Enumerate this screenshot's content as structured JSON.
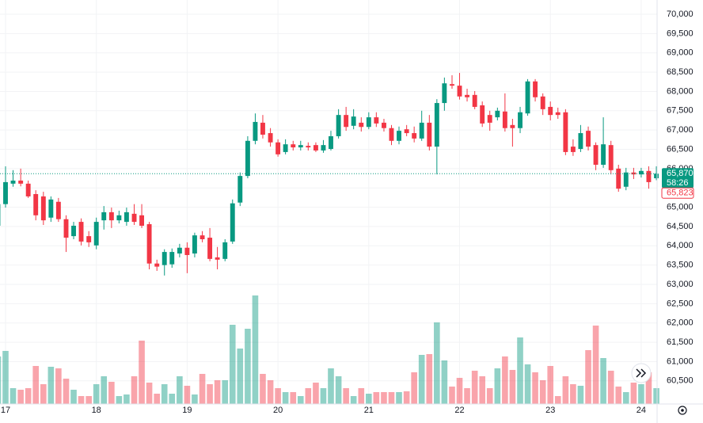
{
  "chart_data": {
    "type": "candlestick",
    "x": [
      16.917,
      17,
      17.083,
      17.167,
      17.25,
      17.333,
      17.417,
      17.5,
      17.583,
      17.667,
      17.75,
      17.833,
      17.917,
      18,
      18.083,
      18.167,
      18.25,
      18.333,
      18.417,
      18.5,
      18.583,
      18.667,
      18.75,
      18.833,
      18.917,
      19,
      19.083,
      19.167,
      19.25,
      19.333,
      19.417,
      19.5,
      19.583,
      19.667,
      19.75,
      19.833,
      19.917,
      20,
      20.083,
      20.167,
      20.25,
      20.333,
      20.417,
      20.5,
      20.583,
      20.667,
      20.75,
      20.833,
      20.917,
      21,
      21.083,
      21.167,
      21.25,
      21.333,
      21.417,
      21.5,
      21.583,
      21.667,
      21.75,
      21.833,
      21.917,
      22,
      22.083,
      22.167,
      22.25,
      22.333,
      22.417,
      22.5,
      22.583,
      22.667,
      22.75,
      22.833,
      22.917,
      23,
      23.083,
      23.167,
      23.25,
      23.333,
      23.417,
      23.5,
      23.583,
      23.667,
      23.75,
      23.833,
      23.917,
      24,
      24.083,
      24.167
    ],
    "open": [
      64520,
      65080,
      65610,
      65690,
      65610,
      65340,
      65280,
      64730,
      65140,
      64690,
      64250,
      64620,
      64250,
      64010,
      64660,
      64870,
      64660,
      64620,
      64830,
      64790,
      64560,
      63540,
      63500,
      63520,
      63800,
      63950,
      63800,
      64270,
      64210,
      63700,
      63660,
      64110,
      65120,
      65810,
      66720,
      67190,
      66920,
      66680,
      66430,
      66630,
      66550,
      66590,
      66610,
      66470,
      66510,
      66840,
      67390,
      67110,
      67190,
      67080,
      67330,
      67190,
      67050,
      66720,
      67020,
      66920,
      66780,
      67190,
      66570,
      67700,
      68190,
      68150,
      67910,
      67910,
      67640,
      67390,
      67330,
      67480,
      67130,
      67050,
      67430,
      68260,
      67870,
      67600,
      67460,
      67460,
      66570,
      66510,
      66980,
      66610,
      66100,
      66610,
      66000,
      65530,
      65900,
      65850,
      65940,
      65750
    ],
    "high": [
      65240,
      66060,
      65960,
      66000,
      65690,
      65440,
      65400,
      65280,
      65240,
      64790,
      64620,
      64710,
      64380,
      64730,
      65030,
      64990,
      64910,
      64990,
      65080,
      65080,
      64620,
      63640,
      63910,
      63930,
      64050,
      64090,
      64340,
      64380,
      64460,
      63970,
      64170,
      65200,
      65900,
      66840,
      67430,
      67390,
      67050,
      66760,
      66760,
      66720,
      66720,
      66680,
      66680,
      66740,
      66980,
      67540,
      67600,
      67540,
      67330,
      67460,
      67460,
      67290,
      67130,
      67090,
      67130,
      67090,
      67500,
      67390,
      67800,
      68360,
      68420,
      68480,
      68070,
      68010,
      67740,
      67500,
      67580,
      67950,
      67290,
      67600,
      68320,
      68320,
      67950,
      67740,
      67580,
      67540,
      66760,
      67130,
      67090,
      66680,
      67330,
      66720,
      66100,
      66020,
      66020,
      66020,
      66060,
      66060
    ],
    "low": [
      64460,
      64990,
      65530,
      65540,
      65240,
      64660,
      64540,
      64620,
      64620,
      63840,
      64170,
      64010,
      63970,
      63910,
      64420,
      64460,
      64580,
      64520,
      64540,
      64460,
      63390,
      63350,
      63230,
      63430,
      63700,
      63290,
      63700,
      64090,
      63600,
      63390,
      63600,
      64050,
      65030,
      65750,
      66630,
      66780,
      66570,
      66310,
      66370,
      66470,
      66470,
      66470,
      66430,
      66410,
      66470,
      66780,
      66980,
      67020,
      66960,
      67020,
      67080,
      66960,
      66610,
      66630,
      66840,
      66680,
      66720,
      66470,
      65850,
      67500,
      68070,
      67790,
      67740,
      67540,
      67080,
      66980,
      67250,
      66960,
      66570,
      66920,
      67370,
      67740,
      67390,
      67250,
      67290,
      66350,
      66330,
      66430,
      66470,
      65960,
      66020,
      65850,
      65400,
      65440,
      65730,
      65770,
      65480,
      65700
    ],
    "close": [
      65080,
      65650,
      65690,
      65610,
      65280,
      64790,
      64660,
      65200,
      64690,
      64210,
      64520,
      64110,
      64090,
      64620,
      64870,
      64660,
      64790,
      64870,
      64620,
      64520,
      63540,
      63460,
      63840,
      63840,
      63950,
      63760,
      64270,
      64170,
      63660,
      63640,
      64090,
      65100,
      65810,
      66720,
      67210,
      66880,
      66680,
      66370,
      66630,
      66550,
      66610,
      66550,
      66470,
      66610,
      66840,
      67390,
      67080,
      67350,
      67080,
      67330,
      67170,
      67050,
      66720,
      66980,
      66920,
      66780,
      67190,
      66570,
      67700,
      68210,
      68150,
      67870,
      67850,
      67600,
      67170,
      67190,
      67500,
      67050,
      67050,
      67460,
      68260,
      67850,
      67540,
      67390,
      67390,
      66430,
      66430,
      66920,
      66570,
      66100,
      66630,
      65960,
      65480,
      65900,
      65850,
      65940,
      65650,
      65870
    ],
    "volume": [
      60,
      67,
      20,
      18,
      20,
      48,
      25,
      47,
      45,
      32,
      18,
      10,
      10,
      25,
      35,
      28,
      10,
      12,
      35,
      80,
      27,
      13,
      25,
      13,
      35,
      23,
      12,
      38,
      25,
      30,
      30,
      100,
      70,
      95,
      137,
      38,
      30,
      20,
      15,
      15,
      10,
      20,
      27,
      20,
      45,
      35,
      20,
      10,
      20,
      13,
      15,
      15,
      15,
      15,
      16,
      40,
      62,
      63,
      103,
      55,
      22,
      33,
      20,
      42,
      35,
      20,
      45,
      60,
      43,
      84,
      50,
      40,
      30,
      48,
      10,
      35,
      25,
      23,
      68,
      99,
      58,
      42,
      22,
      15,
      27,
      25,
      40,
      20
    ],
    "up_color": "#089981",
    "down_color": "#f23645",
    "xlim": [
      16.939,
      24.175
    ],
    "xticks": [
      17,
      18,
      19,
      20,
      21,
      22,
      23,
      24
    ],
    "ylim": [
      59900,
      70370
    ],
    "yticks": [
      {
        "value": 60500,
        "label": "60,500"
      },
      {
        "value": 61000,
        "label": "61,000"
      },
      {
        "value": 61500,
        "label": "61,500"
      },
      {
        "value": 62000,
        "label": "62,000"
      },
      {
        "value": 62500,
        "label": "62,500"
      },
      {
        "value": 63000,
        "label": "63,000"
      },
      {
        "value": 63500,
        "label": "63,500"
      },
      {
        "value": 64000,
        "label": "64,000"
      },
      {
        "value": 64500,
        "label": "64,500"
      },
      {
        "value": 65000,
        "label": "65,000"
      },
      {
        "value": 65500,
        "label": "65,500"
      },
      {
        "value": 66000,
        "label": "66,000"
      },
      {
        "value": 66500,
        "label": "66,500"
      },
      {
        "value": 67000,
        "label": "67,000"
      },
      {
        "value": 67500,
        "label": "67,500"
      },
      {
        "value": 68000,
        "label": "68,000"
      },
      {
        "value": 68500,
        "label": "68,500"
      },
      {
        "value": 69000,
        "label": "69,000"
      },
      {
        "value": 69500,
        "label": "69,500"
      },
      {
        "value": 70000,
        "label": "70,000"
      }
    ],
    "volume_lim": [
      0,
      160
    ],
    "grid": true,
    "last_price": {
      "value": 65870,
      "label": "65,870"
    },
    "countdown": "58:26",
    "other_price": {
      "value": 65823,
      "label": "65,823"
    }
  }
}
